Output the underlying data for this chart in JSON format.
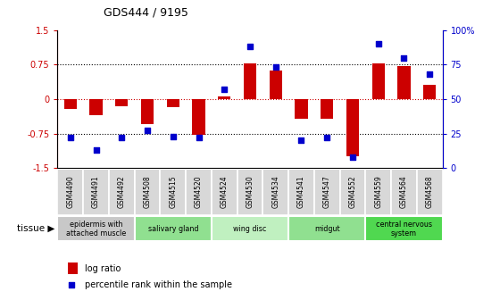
{
  "title": "GDS444 / 9195",
  "samples": [
    "GSM4490",
    "GSM4491",
    "GSM4492",
    "GSM4508",
    "GSM4515",
    "GSM4520",
    "GSM4524",
    "GSM4530",
    "GSM4534",
    "GSM4541",
    "GSM4547",
    "GSM4552",
    "GSM4559",
    "GSM4564",
    "GSM4568"
  ],
  "log_ratio": [
    -0.22,
    -0.35,
    -0.15,
    -0.55,
    -0.18,
    -0.78,
    0.05,
    0.78,
    0.62,
    -0.42,
    -0.42,
    -1.25,
    0.78,
    0.72,
    0.3
  ],
  "percentile": [
    22,
    13,
    22,
    27,
    23,
    22,
    57,
    88,
    73,
    20,
    22,
    8,
    90,
    80,
    68
  ],
  "tissue_groups": [
    {
      "label": "epidermis with\nattached muscle",
      "start": 0,
      "end": 3,
      "color": "#c8c8c8"
    },
    {
      "label": "salivary gland",
      "start": 3,
      "end": 6,
      "color": "#90e090"
    },
    {
      "label": "wing disc",
      "start": 6,
      "end": 9,
      "color": "#c0f0c0"
    },
    {
      "label": "midgut",
      "start": 9,
      "end": 12,
      "color": "#90e090"
    },
    {
      "label": "central nervous\nsystem",
      "start": 12,
      "end": 15,
      "color": "#50d850"
    }
  ],
  "bar_color": "#cc0000",
  "dot_color": "#0000cc",
  "ylim_left": [
    -1.5,
    1.5
  ],
  "ylim_right": [
    0,
    100
  ],
  "yticks_left": [
    -1.5,
    -0.75,
    0,
    0.75,
    1.5
  ],
  "yticks_right": [
    0,
    25,
    50,
    75,
    100
  ],
  "hlines_dotted": [
    0.75,
    -0.75
  ],
  "hline_red": 0,
  "background_color": "#ffffff",
  "sample_box_color": "#d8d8d8",
  "bar_width": 0.5
}
